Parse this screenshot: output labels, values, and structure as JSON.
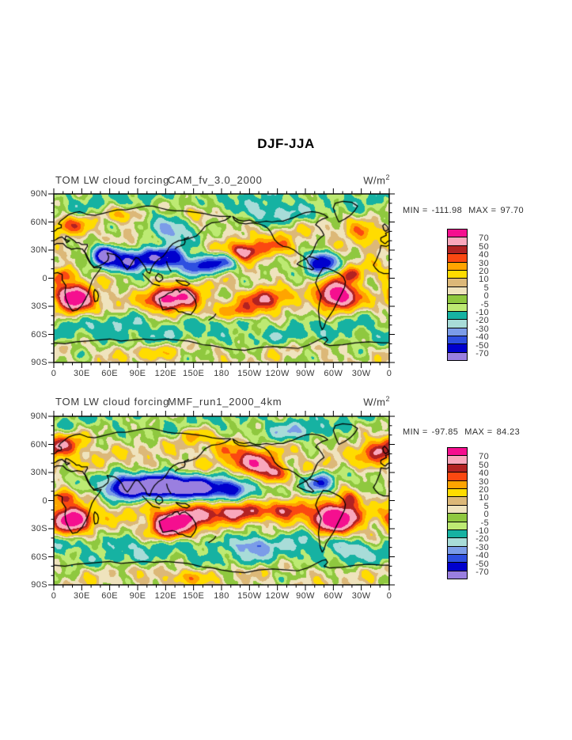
{
  "title": "DJF-JJA",
  "panels": [
    {
      "variable_title": "TOM LW cloud forcing",
      "case_title": "CAM_fv_3.0_2000",
      "units": "W/m",
      "units_exponent": "2",
      "stats": {
        "min_label": "MIN =",
        "min": "-111.98",
        "max_label": "MAX =",
        "max": "97.70"
      }
    },
    {
      "variable_title": "TOM LW cloud forcing",
      "case_title": "MMF_run1_2000_4km",
      "units": "W/m",
      "units_exponent": "2",
      "stats": {
        "min_label": "MIN =",
        "min": "-97.85",
        "max_label": "MAX =",
        "max": "84.23"
      }
    }
  ],
  "chart_data": [
    {
      "type": "heatmap",
      "subtype": "filled_contour_world_map",
      "projection": "equirectangular",
      "season": "DJF-JJA",
      "title": "TOM LW cloud forcing",
      "case": "CAM_fv_3.0_2000",
      "units": "W/m^2",
      "min": -111.98,
      "max": 97.7,
      "contour_levels": [
        -70,
        -50,
        -40,
        -30,
        -20,
        -10,
        -5,
        0,
        5,
        10,
        20,
        30,
        40,
        50,
        70
      ],
      "colorbar_labels": [
        "70",
        "50",
        "40",
        "30",
        "20",
        "10",
        "5",
        "0",
        "-5",
        "-10",
        "-20",
        "-30",
        "-40",
        "-50",
        "-70"
      ],
      "palette_high_to_low": [
        "#f50f8f",
        "#f9a7bc",
        "#b22222",
        "#fb4811",
        "#ffa400",
        "#ffdc00",
        "#dcb878",
        "#efe3bd",
        "#8fc83f",
        "#bdea73",
        "#16b2a2",
        "#a8dcd8",
        "#7b9ce8",
        "#2e4fe0",
        "#0000cd",
        "#9a7fe0"
      ],
      "x_ticks": [
        "0",
        "30E",
        "60E",
        "90E",
        "120E",
        "150E",
        "180",
        "150W",
        "120W",
        "90W",
        "60W",
        "30W",
        "0"
      ],
      "y_ticks": [
        "90N",
        "60N",
        "30N",
        "0",
        "30S",
        "60S",
        "90S"
      ],
      "lon_range": [
        0,
        360
      ],
      "lat_range": [
        -90,
        90
      ],
      "grid": false,
      "legend_position": "right"
    },
    {
      "type": "heatmap",
      "subtype": "filled_contour_world_map",
      "projection": "equirectangular",
      "season": "DJF-JJA",
      "title": "TOM LW cloud forcing",
      "case": "MMF_run1_2000_4km",
      "units": "W/m^2",
      "min": -97.85,
      "max": 84.23,
      "contour_levels": [
        -70,
        -50,
        -40,
        -30,
        -20,
        -10,
        -5,
        0,
        5,
        10,
        20,
        30,
        40,
        50,
        70
      ],
      "colorbar_labels": [
        "70",
        "50",
        "40",
        "30",
        "20",
        "10",
        "5",
        "0",
        "-5",
        "-10",
        "-20",
        "-30",
        "-40",
        "-50",
        "-70"
      ],
      "palette_high_to_low": [
        "#f50f8f",
        "#f9a7bc",
        "#b22222",
        "#fb4811",
        "#ffa400",
        "#ffdc00",
        "#dcb878",
        "#efe3bd",
        "#8fc83f",
        "#bdea73",
        "#16b2a2",
        "#a8dcd8",
        "#7b9ce8",
        "#2e4fe0",
        "#0000cd",
        "#9a7fe0"
      ],
      "x_ticks": [
        "0",
        "30E",
        "60E",
        "90E",
        "120E",
        "150E",
        "180",
        "150W",
        "120W",
        "90W",
        "60W",
        "30W",
        "0"
      ],
      "y_ticks": [
        "90N",
        "60N",
        "30N",
        "0",
        "30S",
        "60S",
        "90S"
      ],
      "lon_range": [
        0,
        360
      ],
      "lat_range": [
        -90,
        90
      ],
      "grid": false,
      "legend_position": "right"
    }
  ]
}
